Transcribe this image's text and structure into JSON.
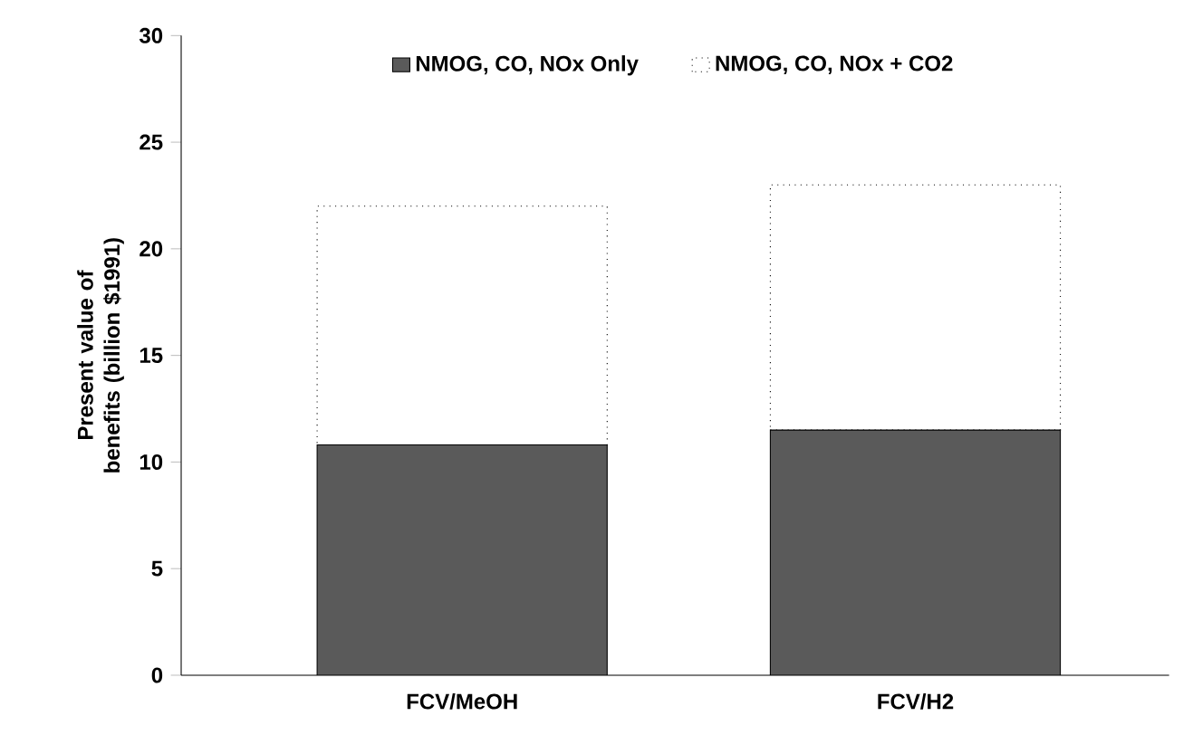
{
  "chart_data": {
    "type": "bar",
    "stacked": true,
    "ylabel": "Present value of benefits (billion $1991)",
    "categories": [
      "FCV/MeOH",
      "FCV/H2"
    ],
    "series": [
      {
        "name": "NMOG, CO, NOx Only",
        "color": "#5a5a5a",
        "values": [
          10.8,
          11.5
        ]
      },
      {
        "name": "NMOG, CO, NOx + CO2",
        "color": "#ffffff",
        "line_style": "dotted",
        "values": [
          11.2,
          11.5
        ]
      }
    ],
    "ylim": [
      0,
      30
    ],
    "yticks": [
      0,
      5,
      10,
      15,
      20,
      25,
      30
    ],
    "grid": false,
    "legend": "top"
  }
}
